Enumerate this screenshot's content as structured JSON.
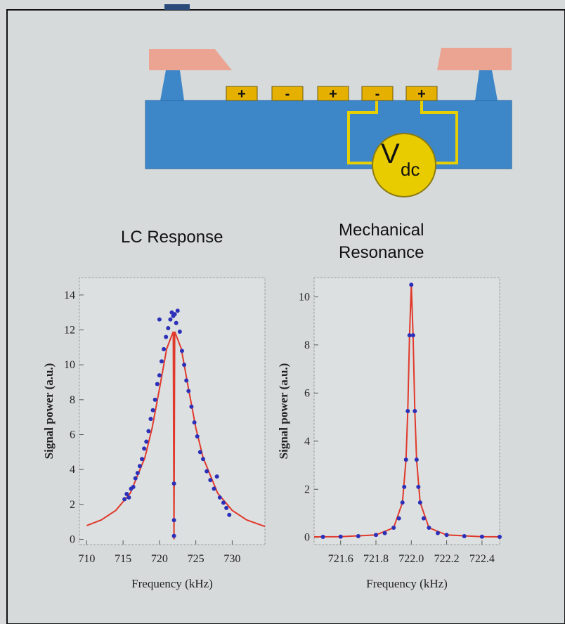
{
  "diagram": {
    "electrodes": [
      "+",
      "-",
      "+",
      "-",
      "+"
    ],
    "source": "V",
    "source_subscript": "dc"
  },
  "chart_data": [
    {
      "type": "scatter",
      "title": "LC Response",
      "x_label": "Frequency (kHz)",
      "y_label": "Signal power (a.u.)",
      "xlim": [
        709,
        734.5
      ],
      "ylim": [
        -0.3,
        15
      ],
      "xticks": [
        710,
        715,
        720,
        725,
        730
      ],
      "yticks": [
        0,
        2,
        4,
        6,
        8,
        10,
        12,
        14
      ],
      "series": [
        {
          "style": "points",
          "color": "#2c30b8",
          "x": [
            715.2,
            715.5,
            715.8,
            716.1,
            716.4,
            716.7,
            717.0,
            717.3,
            717.6,
            717.9,
            718.2,
            718.5,
            718.8,
            719.1,
            719.4,
            719.7,
            720.0,
            720.0,
            720.3,
            720.6,
            720.9,
            721.2,
            721.5,
            721.7,
            721.9,
            722.0,
            722.0,
            722.0,
            722.1,
            722.3,
            722.5,
            722.8,
            723.1,
            723.4,
            723.7,
            724.0,
            724.4,
            724.8,
            725.2,
            725.6,
            726.0,
            726.5,
            727.0,
            727.5,
            727.9,
            728.3,
            728.8,
            729.2,
            729.6
          ],
          "values": [
            2.3,
            2.6,
            2.4,
            2.9,
            3.0,
            3.5,
            3.8,
            4.2,
            4.6,
            5.2,
            5.6,
            6.2,
            6.9,
            7.4,
            8.0,
            8.9,
            9.4,
            12.6,
            10.2,
            10.9,
            11.6,
            12.1,
            12.6,
            13.0,
            12.8,
            0.2,
            1.1,
            3.2,
            12.9,
            12.4,
            13.1,
            11.9,
            10.8,
            10.0,
            9.1,
            8.5,
            7.6,
            6.7,
            5.9,
            5.0,
            4.6,
            3.9,
            3.4,
            2.9,
            3.6,
            2.4,
            2.1,
            1.8,
            1.4
          ]
        },
        {
          "style": "line",
          "color": "#e0392c",
          "x": [
            710,
            712,
            714,
            716,
            718,
            719,
            720,
            721,
            721.9,
            722,
            722.1,
            723,
            724,
            725,
            726,
            728,
            730,
            732,
            734.5
          ],
          "values": [
            0.79,
            1.11,
            1.66,
            2.65,
            4.68,
            6.39,
            8.62,
            10.93,
            11.9,
            0,
            11.9,
            10.93,
            8.62,
            6.39,
            4.68,
            2.65,
            1.66,
            1.11,
            0.74
          ]
        }
      ]
    },
    {
      "type": "scatter",
      "title": "Mechanical Resonance",
      "x_label": "Frequency (kHz)",
      "y_label": "Signal power (a.u.)",
      "xlim": [
        721.45,
        722.5
      ],
      "ylim": [
        -0.3,
        10.8
      ],
      "xticks": [
        721.6,
        721.8,
        {
          "value": 722,
          "label": "722.0"
        },
        722.2,
        722.4
      ],
      "yticks": [
        0,
        2,
        4,
        6,
        8,
        10
      ],
      "series": [
        {
          "style": "points",
          "color": "#2c30b8",
          "x": [
            721.5,
            721.6,
            721.7,
            721.8,
            721.85,
            721.9,
            721.93,
            721.95,
            721.96,
            721.97,
            721.98,
            721.99,
            722.0,
            722.01,
            722.02,
            722.03,
            722.04,
            722.05,
            722.07,
            722.1,
            722.15,
            722.2,
            722.3,
            722.4,
            722.5
          ],
          "values": [
            0.02,
            0.03,
            0.05,
            0.1,
            0.18,
            0.4,
            0.79,
            1.45,
            2.1,
            3.23,
            5.25,
            8.4,
            10.5,
            8.4,
            5.25,
            3.23,
            2.1,
            1.45,
            0.79,
            0.4,
            0.18,
            0.1,
            0.05,
            0.03,
            0.02
          ]
        },
        {
          "style": "line",
          "color": "#e0392c",
          "x": [
            721.45,
            721.6,
            721.8,
            721.9,
            721.95,
            721.97,
            721.98,
            721.99,
            722.0,
            722.01,
            722.02,
            722.03,
            722.05,
            722.1,
            722.2,
            722.4,
            722.5
          ],
          "values": [
            0.02,
            0.03,
            0.1,
            0.4,
            1.45,
            3.23,
            5.25,
            8.4,
            10.5,
            8.4,
            5.25,
            3.23,
            1.45,
            0.4,
            0.1,
            0.03,
            0.02
          ]
        }
      ]
    }
  ]
}
